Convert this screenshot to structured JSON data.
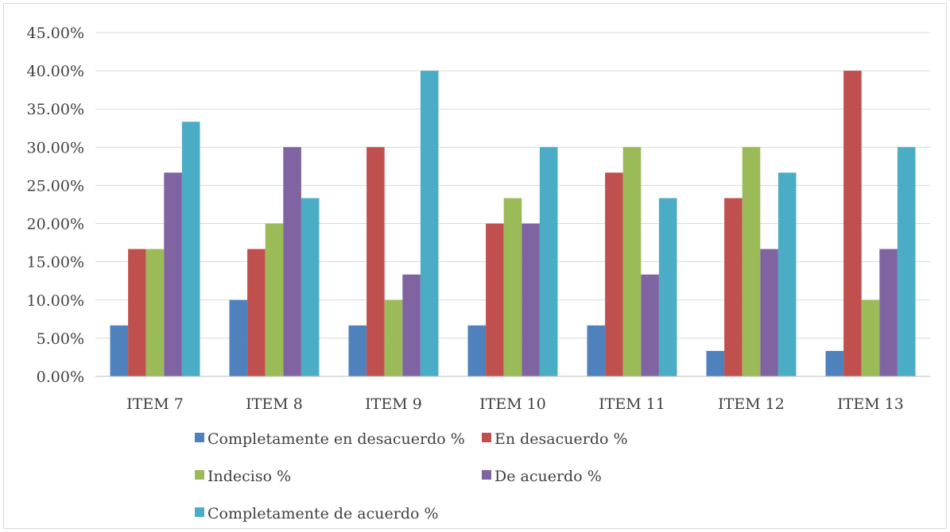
{
  "chart_data": {
    "type": "bar",
    "title": "",
    "xlabel": "",
    "ylabel": "",
    "ylim": [
      0,
      45
    ],
    "y_tick_step": 5,
    "y_tick_format": "percent_2dp",
    "grid": "horizontal",
    "legend_position": "bottom",
    "categories": [
      "ITEM 7",
      "ITEM 8",
      "ITEM 9",
      "ITEM 10",
      "ITEM 11",
      "ITEM 12",
      "ITEM 13"
    ],
    "series": [
      {
        "name": "Completamente en desacuerdo %",
        "color": "#4f81bd",
        "values": [
          6.67,
          10.0,
          6.67,
          6.67,
          6.67,
          3.33,
          3.33
        ]
      },
      {
        "name": "En desacuerdo %",
        "color": "#c0504d",
        "values": [
          16.67,
          16.67,
          30.0,
          20.0,
          26.67,
          23.33,
          40.0
        ]
      },
      {
        "name": "Indeciso %",
        "color": "#9bbb59",
        "values": [
          16.67,
          20.0,
          10.0,
          23.33,
          30.0,
          30.0,
          10.0
        ]
      },
      {
        "name": "De acuerdo %",
        "color": "#8064a2",
        "values": [
          26.67,
          30.0,
          13.33,
          20.0,
          13.33,
          16.67,
          16.67
        ]
      },
      {
        "name": "Completamente de acuerdo %",
        "color": "#4bacc6",
        "values": [
          33.33,
          23.33,
          40.0,
          30.0,
          23.33,
          26.67,
          30.0
        ]
      }
    ]
  }
}
